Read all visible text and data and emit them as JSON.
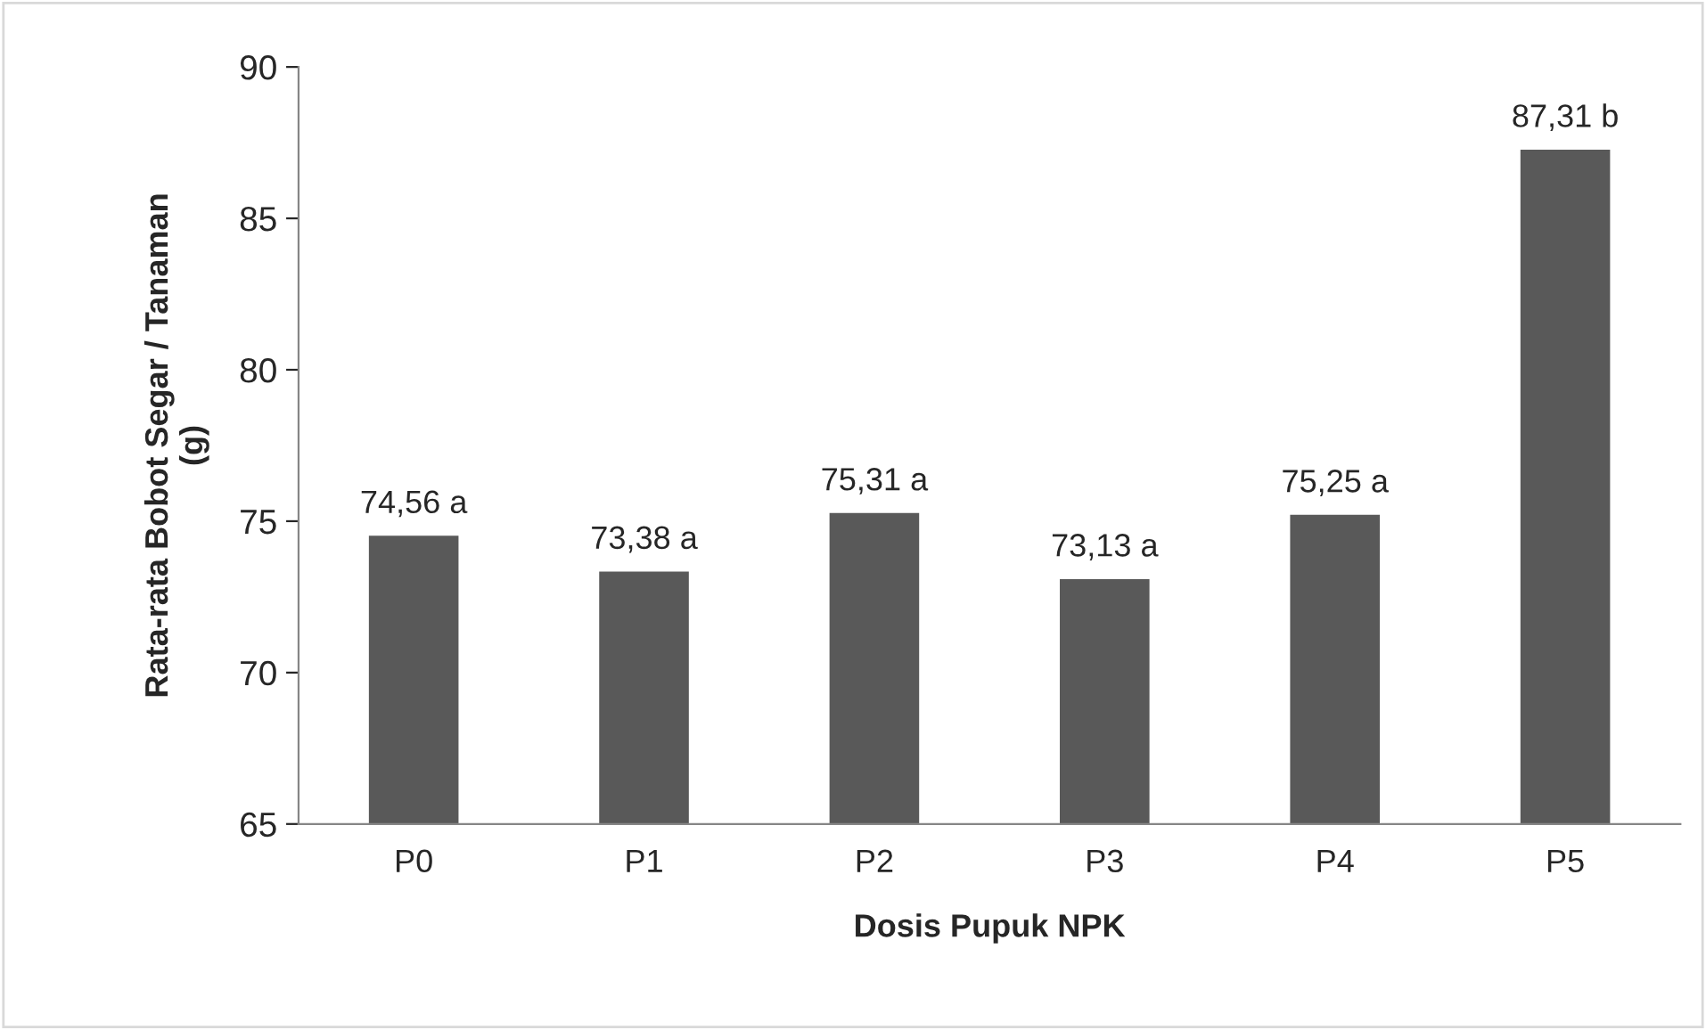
{
  "chart_data": {
    "type": "bar",
    "xlabel": "Dosis Pupuk NPK",
    "ylabel": "Rata-rata Bobot Segar / Tanaman (g)",
    "categories": [
      "P0",
      "P1",
      "P2",
      "P3",
      "P4",
      "P5"
    ],
    "values": [
      74.56,
      73.38,
      75.31,
      73.13,
      75.25,
      87.31
    ],
    "value_labels": [
      "74,56 a",
      "73,38 a",
      "75,31 a",
      "73,13 a",
      "75,25 a",
      "87,31 b"
    ],
    "color": "#595959",
    "ylim": [
      65,
      90
    ],
    "yticks": [
      65,
      70,
      75,
      80,
      85,
      90
    ],
    "grid": false,
    "legend": false
  }
}
